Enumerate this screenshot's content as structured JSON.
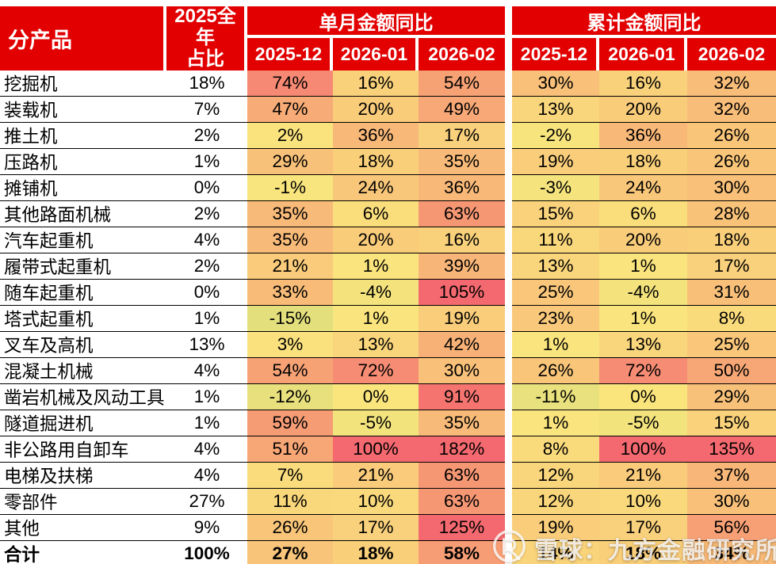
{
  "colors": {
    "header_bg": "#e20000",
    "header_text": "#ffffff",
    "row_line": "#000000",
    "scale_green": "#63be7b",
    "scale_yellow": "#fae57d",
    "scale_red": "#f4696f"
  },
  "watermark": {
    "logo": "xueqiu-snowball-logo",
    "text": "雪球：九方金融研究所"
  },
  "chart_data": {
    "type": "heatmap",
    "title": "",
    "unit": "%",
    "row_header": "分产品",
    "share_header_lines": [
      "2025全年",
      "占比"
    ],
    "column_groups": [
      "单月金额同比",
      "累计金额同比"
    ],
    "columns": [
      "2025-12",
      "2026-01",
      "2026-02"
    ],
    "color_scale": {
      "green": "#63be7b",
      "yellow": "#fae57d",
      "red": "#f4696f",
      "domain": [
        -100,
        0,
        100
      ]
    },
    "rows": [
      {
        "name": "挖掘机",
        "share": "18%",
        "monthly": [
          74,
          16,
          54
        ],
        "cumulative": [
          30,
          16,
          32
        ]
      },
      {
        "name": "装载机",
        "share": "7%",
        "monthly": [
          47,
          20,
          49
        ],
        "cumulative": [
          13,
          20,
          32
        ]
      },
      {
        "name": "推土机",
        "share": "2%",
        "monthly": [
          2,
          36,
          17
        ],
        "cumulative": [
          -2,
          36,
          26
        ]
      },
      {
        "name": "压路机",
        "share": "1%",
        "monthly": [
          29,
          18,
          35
        ],
        "cumulative": [
          19,
          18,
          26
        ]
      },
      {
        "name": "摊铺机",
        "share": "0%",
        "monthly": [
          -1,
          24,
          36
        ],
        "cumulative": [
          -3,
          24,
          30
        ]
      },
      {
        "name": "其他路面机械",
        "share": "2%",
        "monthly": [
          35,
          6,
          63
        ],
        "cumulative": [
          15,
          6,
          28
        ]
      },
      {
        "name": "汽车起重机",
        "share": "4%",
        "monthly": [
          35,
          20,
          16
        ],
        "cumulative": [
          11,
          20,
          18
        ]
      },
      {
        "name": "履带式起重机",
        "share": "2%",
        "monthly": [
          21,
          1,
          39
        ],
        "cumulative": [
          13,
          1,
          17
        ]
      },
      {
        "name": "随车起重机",
        "share": "0%",
        "monthly": [
          33,
          -4,
          105
        ],
        "cumulative": [
          25,
          -4,
          31
        ]
      },
      {
        "name": "塔式起重机",
        "share": "1%",
        "monthly": [
          -15,
          1,
          19
        ],
        "cumulative": [
          23,
          1,
          8
        ]
      },
      {
        "name": "叉车及高机",
        "share": "13%",
        "monthly": [
          3,
          13,
          42
        ],
        "cumulative": [
          1,
          13,
          25
        ]
      },
      {
        "name": "混凝土机械",
        "share": "4%",
        "monthly": [
          54,
          72,
          30
        ],
        "cumulative": [
          26,
          72,
          50
        ]
      },
      {
        "name": "凿岩机械及风动工具",
        "share": "1%",
        "monthly": [
          -12,
          0,
          91
        ],
        "cumulative": [
          -11,
          0,
          29
        ]
      },
      {
        "name": "隧道掘进机",
        "share": "1%",
        "monthly": [
          59,
          -5,
          35
        ],
        "cumulative": [
          1,
          -5,
          15
        ]
      },
      {
        "name": "非公路用自卸车",
        "share": "4%",
        "monthly": [
          51,
          100,
          182
        ],
        "cumulative": [
          8,
          100,
          135
        ]
      },
      {
        "name": "电梯及扶梯",
        "share": "4%",
        "monthly": [
          7,
          21,
          63
        ],
        "cumulative": [
          12,
          21,
          37
        ]
      },
      {
        "name": "零部件",
        "share": "27%",
        "monthly": [
          11,
          10,
          63
        ],
        "cumulative": [
          12,
          10,
          30
        ]
      },
      {
        "name": "其他",
        "share": "9%",
        "monthly": [
          26,
          17,
          125
        ],
        "cumulative": [
          19,
          17,
          56
        ]
      },
      {
        "name": "合计",
        "share": "100%",
        "monthly": [
          27,
          18,
          58
        ],
        "cumulative": [
          14,
          18,
          34
        ],
        "total": true
      }
    ]
  }
}
